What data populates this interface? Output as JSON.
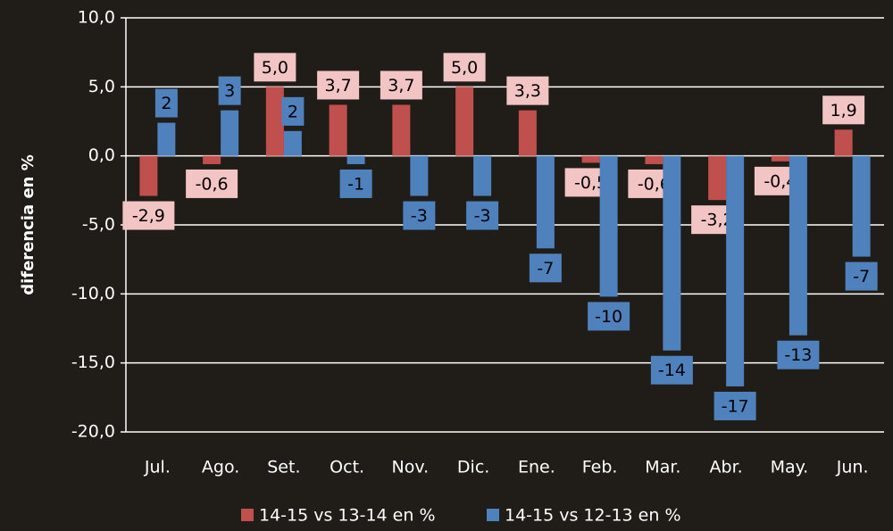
{
  "chart_data": {
    "type": "bar",
    "y_label": "diferencia en %",
    "categories": [
      "Jul.",
      "Ago.",
      "Set.",
      "Oct.",
      "Nov.",
      "Dic.",
      "Ene.",
      "Feb.",
      "Mar.",
      "Abr.",
      "May.",
      "Jun."
    ],
    "series": [
      {
        "name": "14-15 vs 13-14 en %",
        "color": "#c0504d",
        "values": [
          -2.9,
          -0.6,
          5.0,
          3.7,
          3.7,
          5.0,
          3.3,
          -0.5,
          -0.6,
          -3.2,
          -0.4,
          1.9
        ],
        "value_labels": [
          "-2,9",
          "-0,6",
          "5,0",
          "3,7",
          "3,7",
          "5,0",
          "3,3",
          "-0,5",
          "-0,6",
          "-3,2",
          "-0,4",
          "1,9"
        ]
      },
      {
        "name": "14-15 vs 12-13 en %",
        "color": "#4f81bd",
        "values": [
          2.4,
          3.3,
          1.8,
          -0.6,
          -2.9,
          -2.9,
          -6.7,
          -10.2,
          -14.1,
          -16.7,
          -13.0,
          -7.3
        ],
        "value_labels": [
          "2",
          "3",
          "2",
          "-1",
          "-3",
          "-3",
          "-7",
          "-10",
          "-14",
          "-17",
          "-13",
          "-7"
        ]
      }
    ],
    "ylim": [
      -20,
      10
    ],
    "yticks": [
      {
        "value": -20,
        "label": "-20,0"
      },
      {
        "value": -15,
        "label": "-15,0"
      },
      {
        "value": -10,
        "label": "-10,0"
      },
      {
        "value": -5,
        "label": "-5,0"
      },
      {
        "value": 0,
        "label": "0,0"
      },
      {
        "value": 5,
        "label": "5,0"
      },
      {
        "value": 10,
        "label": "10,0"
      }
    ],
    "grid": true,
    "legend": "bottom"
  }
}
